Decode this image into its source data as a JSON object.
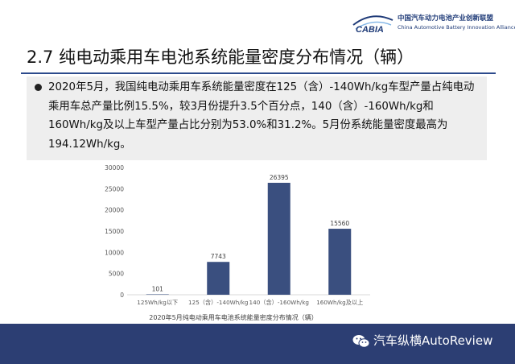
{
  "header": {
    "logo_mark": "CABIA",
    "logo_cn": "中国汽车动力电池产业创新联盟",
    "logo_en": "China Automotive Battery Innovation Alliance"
  },
  "title": "2.7 纯电动乘用车电池系统能量密度分布情况（辆）",
  "bullet": "2020年5月，我国纯电动乘用车系统能量密度在125（含）-140Wh/kg车型产量占纯电动乘用车总产量比例15.5%，较3月份提升3.5个百分点，140（含）-160Wh/kg和160Wh/kg及以上车型产量占比分别为53.0%和31.2%。5月份系统能量密度最高为194.12Wh/kg。",
  "chart_data": {
    "type": "bar",
    "categories": [
      "125Wh/kg以下",
      "125（含）-140Wh/kg",
      "140（含）-160Wh/kg",
      "160Wh/kg及以上"
    ],
    "values": [
      101,
      7743,
      26395,
      15560
    ],
    "data_labels": [
      "101",
      "7743",
      "26395",
      "15560"
    ],
    "title": "2020年5月纯电动乘用车电池系统能量密度分布情况（辆）",
    "xlabel": "",
    "ylabel": "",
    "ylim": [
      0,
      30000
    ],
    "yticks": [
      "0",
      "5000",
      "10000",
      "15000",
      "20000",
      "25000",
      "30000"
    ],
    "grid": false,
    "bar_color": "#3a4f7f"
  },
  "footer": {
    "watermark": "汽车纵横AutoReview",
    "icon": "wechat-icon"
  }
}
